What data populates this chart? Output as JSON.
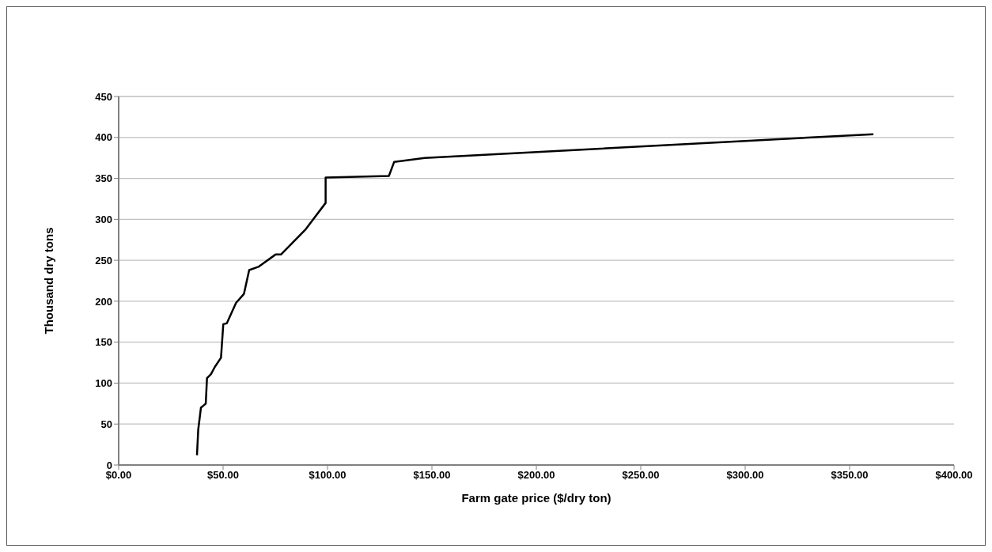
{
  "chart_data": {
    "type": "line",
    "xlabel": "Farm gate price ($/dry ton)",
    "ylabel": "Thousand dry tons",
    "x": [
      37.5,
      38.1,
      39.4,
      41.7,
      42.3,
      44.2,
      46.1,
      49.0,
      50.1,
      51.8,
      56.2,
      60.0,
      62.5,
      66.9,
      75.1,
      77.7,
      89.6,
      99.1,
      99.1,
      129.4,
      131.9,
      146.5,
      361.4
    ],
    "series": [
      {
        "color": "#000000",
        "values": [
          12,
          43,
          70,
          75,
          106,
          111,
          120,
          131,
          172,
          173,
          198,
          209,
          238,
          242,
          257,
          257,
          288,
          320,
          351,
          353,
          370,
          375,
          404
        ]
      }
    ],
    "xlim": [
      0,
      400
    ],
    "xticks": [
      {
        "value": 0,
        "label": "$0.00"
      },
      {
        "value": 50,
        "label": "$50.00"
      },
      {
        "value": 100,
        "label": "$100.00"
      },
      {
        "value": 150,
        "label": "$150.00"
      },
      {
        "value": 200,
        "label": "$200.00"
      },
      {
        "value": 250,
        "label": "$250.00"
      },
      {
        "value": 300,
        "label": "$300.00"
      },
      {
        "value": 350,
        "label": "$350.00"
      },
      {
        "value": 400,
        "label": "$400.00"
      }
    ],
    "ylim": [
      0,
      450
    ],
    "yticks": [
      0,
      50,
      100,
      150,
      200,
      250,
      300,
      350,
      400,
      450
    ],
    "grid": "y",
    "legend": false,
    "marker": "none",
    "line_style": "solid"
  }
}
